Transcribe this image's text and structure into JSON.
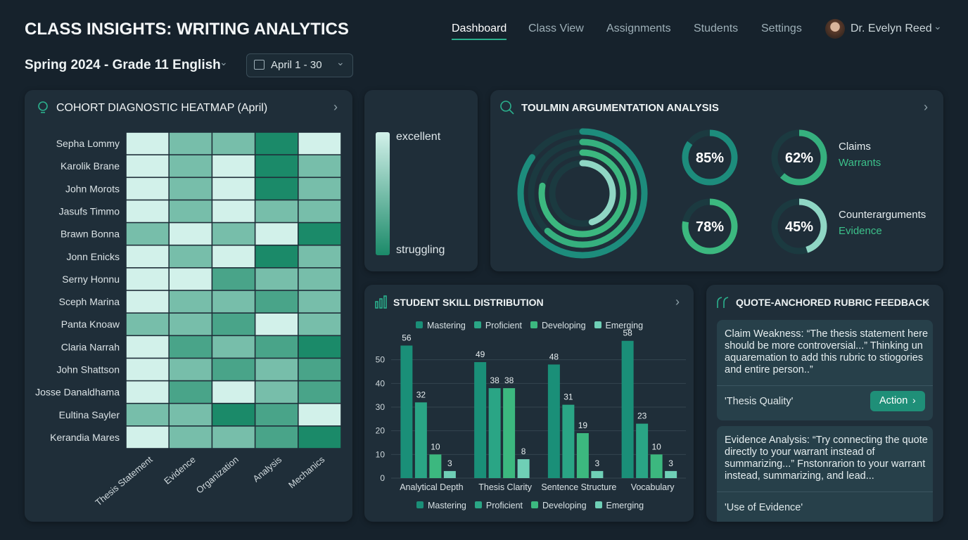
{
  "header": {
    "title": "CLASS INSIGHTS: WRITING ANALYTICS",
    "nav": [
      "Dashboard",
      "Class View",
      "Assignments",
      "Students",
      "Settings"
    ],
    "user": "Dr. Evelyn Reed"
  },
  "filters": {
    "class": "Spring 2024 - Grade 11 English",
    "date_range": "April 1 - 30"
  },
  "chart_data": [
    {
      "type": "heatmap",
      "title": "COHORT DIAGNOSTIC HEATMAP (April)",
      "rows": [
        "Sepha Lommy",
        "Karolik Brane",
        "John Morots",
        "Jasufs Timmo",
        "Brawn Bonna",
        "Jonn Enicks",
        "Serny Honnu",
        "Sceph Marina",
        "Panta Knoaw",
        "Claria Narrah",
        "John Shattson",
        "Josse Danaldhama",
        "Eultina Sayler",
        "Kerandia Mares"
      ],
      "columns": [
        "Thesis Statement",
        "Evidence",
        "Organization",
        "Analysis",
        "Mechanics"
      ],
      "values": [
        [
          5,
          3,
          3,
          1,
          5
        ],
        [
          5,
          3,
          5,
          1,
          3
        ],
        [
          5,
          3,
          5,
          1,
          3
        ],
        [
          5,
          3,
          5,
          3,
          3
        ],
        [
          3,
          5,
          3,
          5,
          1
        ],
        [
          5,
          3,
          5,
          1,
          3
        ],
        [
          5,
          5,
          2,
          3,
          3
        ],
        [
          5,
          3,
          3,
          2,
          3
        ],
        [
          3,
          3,
          2,
          5,
          3
        ],
        [
          5,
          2,
          3,
          2,
          1
        ],
        [
          5,
          3,
          2,
          3,
          2
        ],
        [
          5,
          2,
          5,
          3,
          2
        ],
        [
          3,
          3,
          1,
          2,
          5
        ],
        [
          5,
          3,
          3,
          2,
          1
        ]
      ],
      "zlim": [
        1,
        5
      ],
      "colors": [
        "#1b8a69",
        "#d2f1ea"
      ],
      "legend": {
        "high": "excellent",
        "low": "struggling"
      }
    },
    {
      "type": "radial",
      "title": "TOULMIN ARGUMENTATION ANALYSIS",
      "categories": [
        "Claims",
        "Warrants",
        "Counterarguments",
        "Evidence"
      ],
      "values": [
        85,
        62,
        78,
        45
      ],
      "value_labels": [
        "85%",
        "62%",
        "78%",
        "45%"
      ],
      "colors": [
        "#1d8c7c",
        "#36b07e",
        "#3cb87f",
        "#8fd6c4"
      ]
    },
    {
      "type": "bar",
      "title": "STUDENT SKILL DISTRIBUTION",
      "categories": [
        "Analytical Depth",
        "Thesis Clarity",
        "Sentence Structure",
        "Vocabulary"
      ],
      "series": [
        {
          "name": "Mastering",
          "color": "#1a8f78",
          "values": [
            56,
            49,
            48,
            58
          ]
        },
        {
          "name": "Proficient",
          "color": "#2aa585",
          "values": [
            32,
            38,
            31,
            23
          ]
        },
        {
          "name": "Developing",
          "color": "#3cb87f",
          "values": [
            10,
            38,
            19,
            10
          ]
        },
        {
          "name": "Emerging",
          "color": "#6fcfb6",
          "values": [
            3,
            8,
            3,
            3
          ]
        }
      ],
      "ylim": [
        0,
        60
      ],
      "yticks": [
        0,
        10,
        20,
        30,
        40,
        50
      ],
      "grid": true
    }
  ],
  "feedback": {
    "title": "QUOTE-ANCHORED RUBRIC FEEDBACK",
    "items": [
      {
        "text": "Claim Weakness: “The thesis statement here should be more controversial...” Thinking un aquaremation to add this rubric to stiogories and entire person..”",
        "rubric": "'Thesis Quality'",
        "action": "Action"
      },
      {
        "text": "Evidence Analysis: “Try connecting the quote directly to your warrant instead of summarizing...” Fnstonrarion to your warrant instead, summarizing, and lead...",
        "rubric": "'Use of Evidence'"
      }
    ]
  }
}
